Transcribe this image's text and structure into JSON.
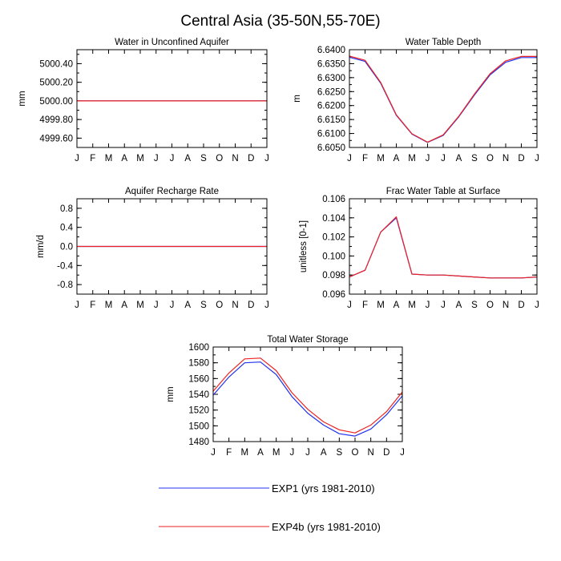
{
  "figure": {
    "title": "Central Asia (35-50N,55-70E)"
  },
  "colors": {
    "exp1": "#2233ee",
    "exp4b": "#ee2222",
    "axis": "#000000"
  },
  "legend": {
    "items": [
      {
        "series": "exp1",
        "label": "EXP1 (yrs 1981-2010)"
      },
      {
        "series": "exp4b",
        "label": "EXP4b (yrs 1981-2010)"
      }
    ]
  },
  "chart_data": [
    {
      "id": "water-unconfined-aquifer",
      "type": "line",
      "title": "Water in Unconfined Aquifer",
      "xlabel": "",
      "ylabel": "mm",
      "categories": [
        "J",
        "F",
        "M",
        "A",
        "M",
        "J",
        "J",
        "A",
        "S",
        "O",
        "N",
        "D",
        "J"
      ],
      "ylim": [
        4999.5,
        5000.55
      ],
      "yticks": [
        4999.6,
        4999.8,
        5000.0,
        5000.2,
        5000.4
      ],
      "ytick_labels": [
        "4999.60",
        "4999.80",
        "5000.00",
        "5000.20",
        "5000.40"
      ],
      "series": [
        {
          "key": "exp1",
          "values": [
            5000,
            5000,
            5000,
            5000,
            5000,
            5000,
            5000,
            5000,
            5000,
            5000,
            5000,
            5000,
            5000
          ]
        },
        {
          "key": "exp4b",
          "values": [
            5000,
            5000,
            5000,
            5000,
            5000,
            5000,
            5000,
            5000,
            5000,
            5000,
            5000,
            5000,
            5000
          ]
        }
      ]
    },
    {
      "id": "water-table-depth",
      "type": "line",
      "title": "Water Table Depth",
      "xlabel": "",
      "ylabel": "m",
      "categories": [
        "J",
        "F",
        "M",
        "A",
        "M",
        "J",
        "J",
        "A",
        "S",
        "O",
        "N",
        "D",
        "J"
      ],
      "ylim": [
        6.605,
        6.64
      ],
      "yticks": [
        6.605,
        6.61,
        6.615,
        6.62,
        6.625,
        6.63,
        6.635,
        6.64
      ],
      "ytick_labels": [
        "6.6050",
        "6.6100",
        "6.6150",
        "6.6200",
        "6.6250",
        "6.6300",
        "6.6350",
        "6.6400"
      ],
      "series": [
        {
          "key": "exp1",
          "values": [
            6.6373,
            6.6358,
            6.628,
            6.6165,
            6.6098,
            6.6068,
            6.6093,
            6.616,
            6.6238,
            6.631,
            6.6355,
            6.6372,
            6.6372
          ]
        },
        {
          "key": "exp4b",
          "values": [
            6.6377,
            6.6362,
            6.6283,
            6.6167,
            6.6099,
            6.6069,
            6.6095,
            6.6162,
            6.6241,
            6.6314,
            6.636,
            6.6376,
            6.6376
          ]
        }
      ]
    },
    {
      "id": "aquifer-recharge-rate",
      "type": "line",
      "title": "Aquifer Recharge Rate",
      "xlabel": "",
      "ylabel": "mm/d",
      "categories": [
        "J",
        "F",
        "M",
        "A",
        "M",
        "J",
        "J",
        "A",
        "S",
        "O",
        "N",
        "D",
        "J"
      ],
      "ylim": [
        -1.0,
        1.0
      ],
      "yticks": [
        -0.8,
        -0.4,
        0.0,
        0.4,
        0.8
      ],
      "ytick_labels": [
        "-0.8",
        "-0.4",
        "0.0",
        "0.4",
        "0.8"
      ],
      "series": [
        {
          "key": "exp1",
          "values": [
            0,
            0,
            0,
            0,
            0,
            0,
            0,
            0,
            0,
            0,
            0,
            0,
            0
          ]
        },
        {
          "key": "exp4b",
          "values": [
            0,
            0,
            0,
            0,
            0,
            0,
            0,
            0,
            0,
            0,
            0,
            0,
            0
          ]
        }
      ]
    },
    {
      "id": "frac-water-table-surface",
      "type": "line",
      "title": "Frac Water Table at Surface",
      "xlabel": "",
      "ylabel": "unitless [0-1]",
      "categories": [
        "J",
        "F",
        "M",
        "A",
        "M",
        "J",
        "J",
        "A",
        "S",
        "O",
        "N",
        "D",
        "J"
      ],
      "ylim": [
        0.096,
        0.106
      ],
      "yticks": [
        0.096,
        0.098,
        0.1,
        0.102,
        0.104,
        0.106
      ],
      "ytick_labels": [
        "0.096",
        "0.098",
        "0.100",
        "0.102",
        "0.104",
        "0.106"
      ],
      "series": [
        {
          "key": "exp1",
          "values": [
            0.0978,
            0.0985,
            0.1025,
            0.104,
            0.0981,
            0.098,
            0.098,
            0.0979,
            0.0978,
            0.0977,
            0.0977,
            0.0977,
            0.0978
          ]
        },
        {
          "key": "exp4b",
          "values": [
            0.0978,
            0.0985,
            0.1025,
            0.1041,
            0.0981,
            0.098,
            0.098,
            0.0979,
            0.0978,
            0.0977,
            0.0977,
            0.0977,
            0.0978
          ]
        }
      ]
    },
    {
      "id": "total-water-storage",
      "type": "line",
      "title": "Total Water Storage",
      "xlabel": "",
      "ylabel": "mm",
      "categories": [
        "J",
        "F",
        "M",
        "A",
        "M",
        "J",
        "J",
        "A",
        "S",
        "O",
        "N",
        "D",
        "J"
      ],
      "ylim": [
        1480,
        1600
      ],
      "yticks": [
        1480,
        1500,
        1520,
        1540,
        1560,
        1580,
        1600
      ],
      "ytick_labels": [
        "1480",
        "1500",
        "1520",
        "1540",
        "1560",
        "1580",
        "1600"
      ],
      "series": [
        {
          "key": "exp1",
          "values": [
            1539,
            1562,
            1580,
            1581,
            1565,
            1537,
            1516,
            1501,
            1490,
            1487,
            1496,
            1514,
            1538
          ]
        },
        {
          "key": "exp4b",
          "values": [
            1544,
            1567,
            1585,
            1586,
            1570,
            1542,
            1521,
            1505,
            1495,
            1491,
            1501,
            1518,
            1543
          ]
        }
      ]
    }
  ]
}
